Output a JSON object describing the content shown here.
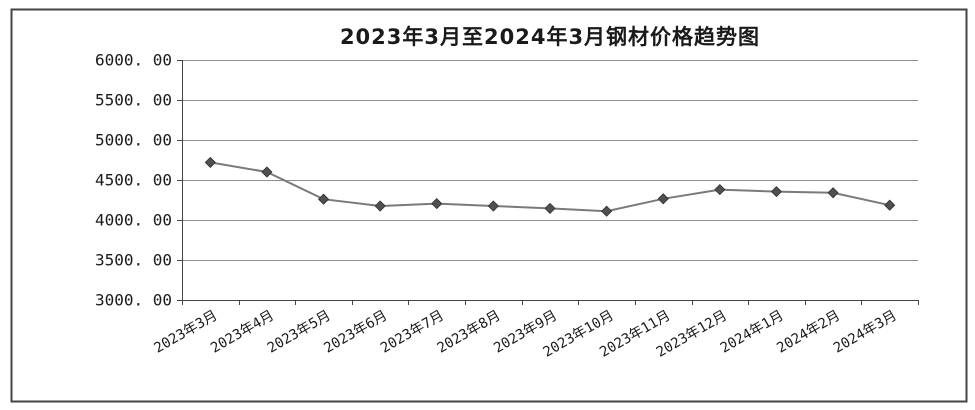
{
  "chart_data": {
    "type": "line",
    "title": "2023年3月至2024年3月钢材价格趋势图",
    "xlabel": "",
    "ylabel": "",
    "categories": [
      "2023年3月",
      "2023年4月",
      "2023年5月",
      "2023年6月",
      "2023年7月",
      "2023年8月",
      "2023年9月",
      "2023年10月",
      "2023年11月",
      "2023年12月",
      "2024年1月",
      "2024年2月",
      "2024年3月"
    ],
    "series": [
      {
        "values": [
          4720,
          4600,
          4260,
          4175,
          4205,
          4175,
          4145,
          4110,
          4265,
          4380,
          4355,
          4340,
          4185
        ]
      }
    ],
    "ylim": [
      3000,
      6000
    ],
    "yticks": [
      "3000. 00",
      "3500. 00",
      "4000. 00",
      "4500. 00",
      "5000. 00",
      "5500. 00",
      "6000. 00"
    ],
    "grid": "horizontal",
    "legend": "none",
    "colors": {
      "line": "#7a7a7a",
      "marker": "#505050",
      "grid": "#909090",
      "frame": "#444444"
    }
  }
}
